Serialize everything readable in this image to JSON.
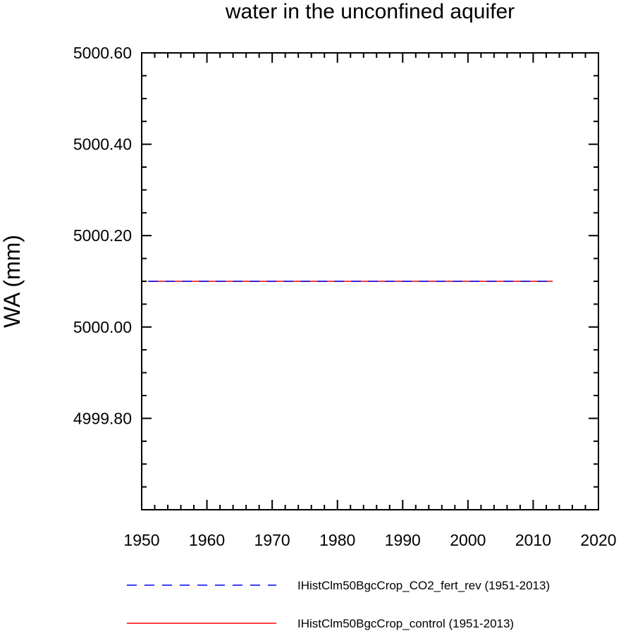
{
  "chart_data": {
    "type": "line",
    "title": "water in the unconfined aquifer",
    "xlabel": "",
    "ylabel": "WA  (mm)",
    "xlim": [
      1950,
      2020
    ],
    "ylim": [
      4999.6,
      5000.6
    ],
    "x_ticks": [
      "1950",
      "1960",
      "1970",
      "1980",
      "1990",
      "2000",
      "2010",
      "2020"
    ],
    "y_ticks": [
      "4999.80",
      "5000.00",
      "5000.20",
      "5000.40",
      "5000.60"
    ],
    "grid": false,
    "legend_position": "bottom",
    "series": [
      {
        "name": "IHistClm50BgcCrop_CO2_fert_rev (1951-2013)",
        "color": "#0000ff",
        "style": "dashed",
        "x": [
          1951,
          2013
        ],
        "y": [
          5000.1,
          5000.1
        ]
      },
      {
        "name": "IHistClm50BgcCrop_control (1951-2013)",
        "color": "#ff0000",
        "style": "solid",
        "x": [
          1951,
          2013
        ],
        "y": [
          5000.1,
          5000.1
        ]
      }
    ]
  }
}
